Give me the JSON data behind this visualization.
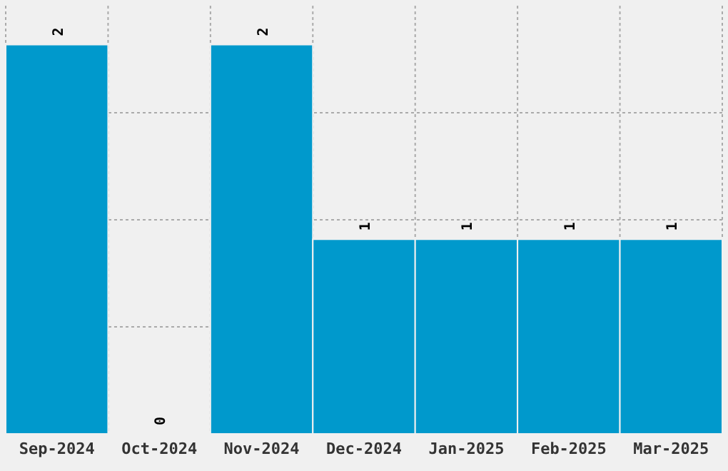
{
  "chart_data": {
    "type": "bar",
    "categories": [
      "Sep-2024",
      "Oct-2024",
      "Nov-2024",
      "Dec-2024",
      "Jan-2025",
      "Feb-2025",
      "Mar-2025"
    ],
    "values": [
      2,
      0,
      2,
      1,
      1,
      1,
      1
    ],
    "color": "#0099cc",
    "data_labels": true,
    "ylim": [
      0,
      2.2
    ],
    "yticks": [
      {
        "value": 0.55,
        "label": null
      },
      {
        "value": 1.1,
        "label": null
      },
      {
        "value": 1.65,
        "label": null
      }
    ],
    "tick_labels": "x",
    "grid": true
  }
}
